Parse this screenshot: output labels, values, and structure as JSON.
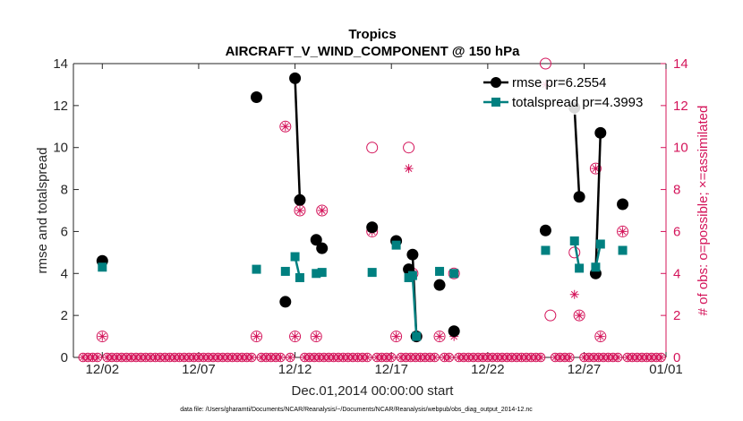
{
  "chart_data": {
    "type": "line",
    "title": "Tropics",
    "subtitle": "AIRCRAFT_V_WIND_COMPONENT @ 150 hPa",
    "xlabel": "Dec.01,2014 00:00:00 start",
    "ylabel": "rmse and totalspread",
    "y2label": "# of obs: o=possible; ×=assimilated",
    "footnote": "data file: /Users/gharamti/Documents/NCAR/Reanalysis/~/Documents/NCAR/Reanalysis/webpub/obs_diag_output_2014-12.nc",
    "xlim": [
      0.5,
      31.25
    ],
    "ylim": [
      0,
      14
    ],
    "y2lim": [
      0,
      14
    ],
    "x_ticks": [
      2,
      7,
      12,
      17,
      22,
      27,
      32
    ],
    "x_tick_labels": [
      "12/02",
      "12/07",
      "12/12",
      "12/17",
      "12/22",
      "12/27",
      "01/01"
    ],
    "y_ticks": [
      0,
      2,
      4,
      6,
      8,
      10,
      12,
      14
    ],
    "y2_ticks": [
      0,
      2,
      4,
      6,
      8,
      10,
      12,
      14
    ],
    "legend_position": "top-right",
    "colors": {
      "rmse": "#000000",
      "spread": "#008080",
      "obs": "#d4145a",
      "axis": "#262626"
    },
    "series": [
      {
        "name": "rmse pr=6.2554",
        "key": "rmse",
        "points": [
          [
            2.0,
            4.6
          ],
          [
            10.0,
            12.4
          ],
          [
            11.5,
            2.65
          ],
          [
            12.0,
            13.3
          ],
          [
            12.25,
            7.5
          ],
          [
            13.1,
            5.6
          ],
          [
            13.4,
            5.2
          ],
          [
            16.0,
            6.2
          ],
          [
            17.25,
            5.55
          ],
          [
            17.9,
            4.2
          ],
          [
            18.1,
            4.9
          ],
          [
            18.3,
            1.0
          ],
          [
            19.5,
            3.45
          ],
          [
            20.25,
            1.25
          ],
          [
            25.0,
            6.05
          ],
          [
            26.5,
            11.9
          ],
          [
            26.75,
            7.65
          ],
          [
            27.6,
            4.0
          ],
          [
            27.85,
            10.7
          ],
          [
            29.0,
            7.3
          ]
        ],
        "segments": [
          [
            12.0,
            12.25
          ],
          [
            18.1,
            18.3
          ],
          [
            20.25,
            20.25
          ],
          [
            26.5,
            26.75
          ],
          [
            27.6,
            27.85
          ]
        ]
      },
      {
        "name": "totalspread pr=4.3993",
        "key": "spread",
        "points": [
          [
            2.0,
            4.3
          ],
          [
            10.0,
            4.2
          ],
          [
            11.5,
            4.1
          ],
          [
            12.0,
            4.8
          ],
          [
            12.25,
            3.8
          ],
          [
            13.1,
            4.0
          ],
          [
            13.4,
            4.05
          ],
          [
            16.0,
            4.05
          ],
          [
            17.25,
            5.35
          ],
          [
            17.9,
            3.8
          ],
          [
            18.1,
            3.9
          ],
          [
            18.3,
            1.0
          ],
          [
            19.5,
            4.1
          ],
          [
            20.25,
            4.0
          ],
          [
            25.0,
            5.1
          ],
          [
            26.5,
            5.55
          ],
          [
            26.75,
            4.25
          ],
          [
            27.6,
            4.3
          ],
          [
            27.85,
            5.4
          ],
          [
            29.0,
            5.1
          ]
        ],
        "segments": [
          [
            12.0,
            12.25
          ],
          [
            18.1,
            18.3
          ],
          [
            20.25,
            20.25
          ],
          [
            26.5,
            26.75
          ],
          [
            27.6,
            27.85
          ]
        ]
      }
    ],
    "obs_possible": [
      [
        2.0,
        1
      ],
      [
        10.0,
        1
      ],
      [
        11.5,
        11
      ],
      [
        12.0,
        1
      ],
      [
        12.25,
        7
      ],
      [
        13.1,
        1
      ],
      [
        13.4,
        7
      ],
      [
        16.0,
        10
      ],
      [
        16.0,
        6
      ],
      [
        17.25,
        1
      ],
      [
        17.9,
        10
      ],
      [
        18.1,
        4
      ],
      [
        18.3,
        1
      ],
      [
        19.5,
        1
      ],
      [
        20.25,
        4
      ],
      [
        25.0,
        14
      ],
      [
        25.25,
        2
      ],
      [
        26.5,
        5
      ],
      [
        26.75,
        2
      ],
      [
        27.6,
        9
      ],
      [
        27.85,
        1
      ],
      [
        29.0,
        6
      ]
    ],
    "obs_assimilated": [
      [
        2.0,
        1
      ],
      [
        10.0,
        1
      ],
      [
        11.5,
        11
      ],
      [
        12.0,
        1
      ],
      [
        12.25,
        7
      ],
      [
        13.1,
        1
      ],
      [
        13.4,
        7
      ],
      [
        16.0,
        6
      ],
      [
        17.25,
        1
      ],
      [
        17.9,
        9
      ],
      [
        18.1,
        4
      ],
      [
        18.3,
        1
      ],
      [
        19.5,
        1
      ],
      [
        20.25,
        1
      ],
      [
        20.25,
        4
      ],
      [
        25.0,
        13
      ],
      [
        26.5,
        3
      ],
      [
        26.75,
        2
      ],
      [
        27.6,
        9
      ],
      [
        27.85,
        1
      ],
      [
        29.0,
        6
      ]
    ]
  }
}
